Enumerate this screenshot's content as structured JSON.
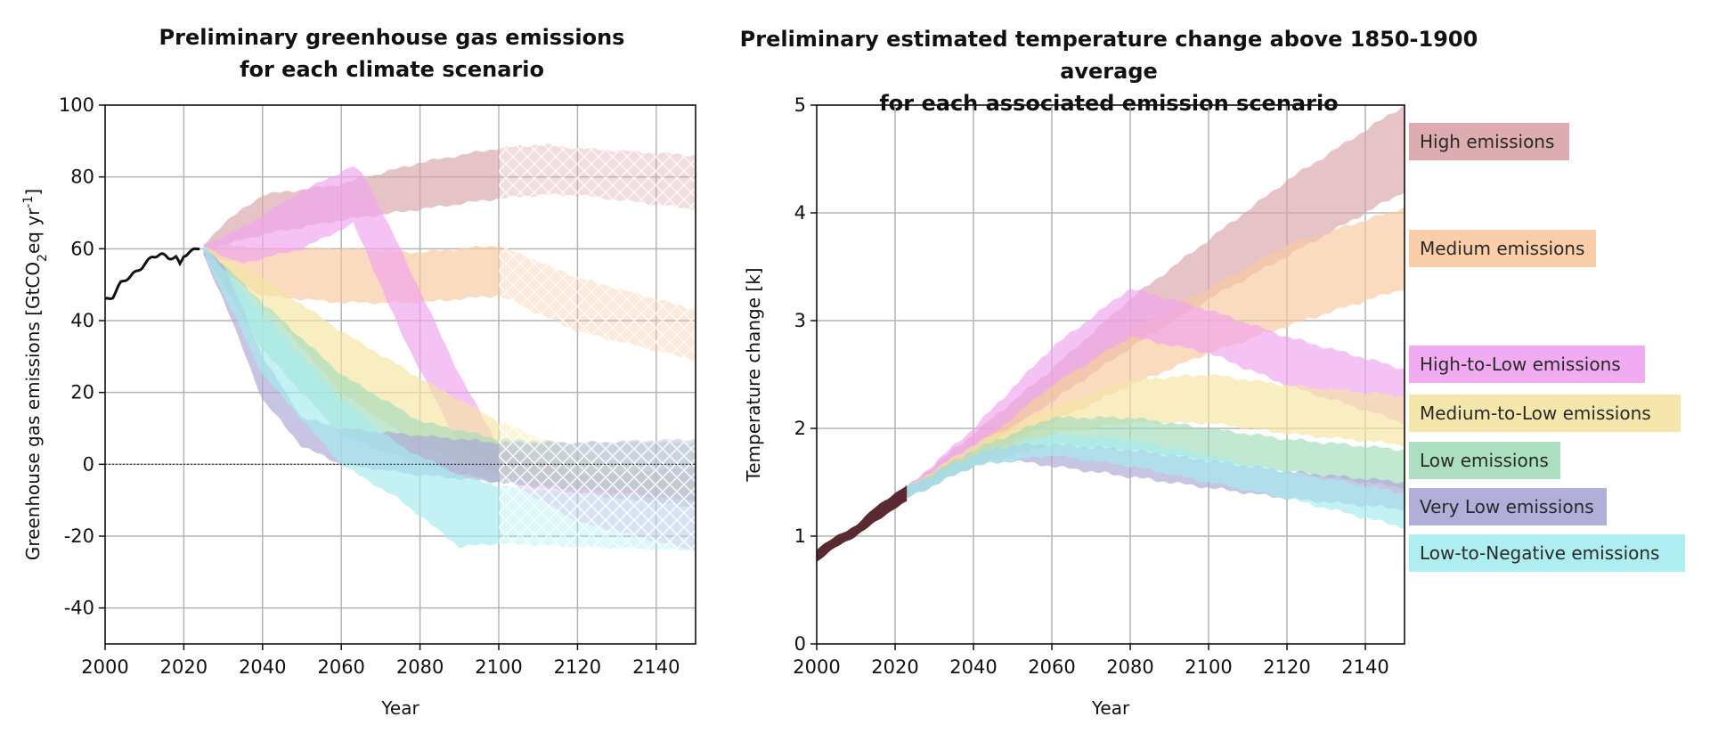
{
  "chart_data": [
    {
      "type": "area",
      "title_lines": [
        "Preliminary greenhouse gas emissions",
        "for each climate scenario"
      ],
      "xlabel": "Year",
      "ylabel": "Greenhouse gas emissions [GtCO",
      "ylabel_sub": "2",
      "ylabel_rest": "eq yr",
      "ylabel_sup": "-1",
      "ylabel_end": "]",
      "xlim": [
        2000,
        2150
      ],
      "ylim": [
        -50,
        100
      ],
      "xticks": [
        2000,
        2020,
        2040,
        2060,
        2080,
        2100,
        2120,
        2140
      ],
      "yticks": [
        -40,
        -20,
        0,
        20,
        40,
        60,
        80,
        100
      ],
      "grid": true,
      "zero_line": true,
      "hatched_region_start": 2100,
      "historical": {
        "x": [
          2000,
          2002,
          2004,
          2006,
          2008,
          2010,
          2012,
          2014,
          2016,
          2018,
          2019,
          2020,
          2022,
          2024
        ],
        "y": [
          46,
          46.5,
          50,
          52,
          54,
          56,
          57.5,
          58,
          57.5,
          58,
          56,
          58.5,
          59,
          60
        ]
      },
      "series": [
        {
          "name": "High emissions",
          "color": "#d9a4a9",
          "x": [
            2025,
            2030,
            2040,
            2060,
            2080,
            2100,
            2110,
            2120,
            2150
          ],
          "lower": [
            59,
            61,
            64,
            68,
            71,
            74,
            75,
            75,
            71
          ],
          "upper": [
            61,
            67,
            75,
            78,
            84,
            88,
            89,
            88,
            86
          ]
        },
        {
          "name": "Medium emissions",
          "color": "#f9c9a0",
          "x": [
            2025,
            2030,
            2040,
            2060,
            2080,
            2100,
            2120,
            2150
          ],
          "lower": [
            58,
            53,
            47,
            45,
            45,
            47,
            37,
            29
          ],
          "upper": [
            60,
            61,
            60,
            60,
            59,
            61,
            52,
            43
          ]
        },
        {
          "name": "High-to-Low emissions",
          "color": "#f0a3ef",
          "x": [
            2025,
            2035,
            2050,
            2063,
            2066,
            2075,
            2090,
            2100,
            2120,
            2150
          ],
          "lower": [
            58,
            56,
            60,
            67,
            60,
            37,
            5,
            -3,
            -16,
            -24
          ],
          "upper": [
            61,
            66,
            76,
            83,
            80,
            60,
            25,
            5,
            -3,
            -1
          ]
        },
        {
          "name": "Medium-to-Low emissions",
          "color": "#f5e5a3",
          "x": [
            2025,
            2040,
            2060,
            2080,
            2100,
            2120,
            2150
          ],
          "lower": [
            59,
            45,
            20,
            5,
            -3,
            -6,
            -8
          ],
          "upper": [
            61,
            52,
            37,
            24,
            12,
            3,
            -5
          ]
        },
        {
          "name": "Low emissions",
          "color": "#a4dcb9",
          "x": [
            2025,
            2040,
            2060,
            2080,
            2100,
            2120,
            2150
          ],
          "lower": [
            59,
            32,
            8,
            0,
            -5,
            -7,
            -10
          ],
          "upper": [
            61,
            45,
            25,
            12,
            7,
            6,
            6
          ]
        },
        {
          "name": "Very Low emissions",
          "color": "#aaa6d6",
          "x": [
            2025,
            2030,
            2040,
            2050,
            2060,
            2080,
            2100,
            2120,
            2150
          ],
          "lower": [
            58,
            46,
            18,
            5,
            0,
            -3,
            -5,
            -8,
            -12
          ],
          "upper": [
            60,
            56,
            30,
            13,
            10,
            8,
            6,
            6,
            7
          ]
        },
        {
          "name": "Low-to-Negative emissions",
          "color": "#a6ecef",
          "x": [
            2025,
            2040,
            2060,
            2075,
            2090,
            2100,
            2120,
            2150
          ],
          "lower": [
            59,
            25,
            0,
            -10,
            -23,
            -22,
            -23,
            -24
          ],
          "upper": [
            61,
            42,
            18,
            5,
            -3,
            -6,
            -8,
            -10
          ]
        }
      ]
    },
    {
      "type": "area",
      "title_lines": [
        "Preliminary estimated temperature change above 1850-1900 average",
        "for each associated emission scenario"
      ],
      "xlabel": "Year",
      "ylabel": "Temperature change [k]",
      "xlim": [
        2000,
        2150
      ],
      "ylim": [
        0,
        5
      ],
      "xticks": [
        2000,
        2020,
        2040,
        2060,
        2080,
        2100,
        2120,
        2140
      ],
      "yticks": [
        0,
        1,
        2,
        3,
        4,
        5
      ],
      "grid": true,
      "legend_position": "right",
      "historical": {
        "x": [
          2000,
          2005,
          2010,
          2015,
          2020,
          2023
        ],
        "lower": [
          0.76,
          0.9,
          1.0,
          1.13,
          1.26,
          1.32
        ],
        "upper": [
          0.88,
          1.0,
          1.1,
          1.27,
          1.4,
          1.47
        ]
      },
      "series": [
        {
          "name": "High emissions",
          "color": "#d9a4a9",
          "x": [
            2023,
            2040,
            2060,
            2080,
            2100,
            2120,
            2150
          ],
          "lower": [
            1.35,
            1.75,
            2.25,
            2.75,
            3.2,
            3.6,
            4.2
          ],
          "upper": [
            1.45,
            1.95,
            2.55,
            3.2,
            3.75,
            4.3,
            5.0
          ]
        },
        {
          "name": "Medium emissions",
          "color": "#f9c9a0",
          "x": [
            2023,
            2040,
            2060,
            2080,
            2100,
            2120,
            2150
          ],
          "lower": [
            1.35,
            1.7,
            2.05,
            2.4,
            2.7,
            2.95,
            3.3
          ],
          "upper": [
            1.45,
            1.85,
            2.4,
            2.9,
            3.3,
            3.7,
            4.05
          ]
        },
        {
          "name": "High-to-Low emissions",
          "color": "#f0a3ef",
          "x": [
            2023,
            2040,
            2060,
            2080,
            2100,
            2120,
            2150
          ],
          "lower": [
            1.35,
            1.8,
            2.4,
            2.85,
            2.7,
            2.4,
            2.05
          ],
          "upper": [
            1.45,
            2.0,
            2.75,
            3.3,
            3.1,
            2.85,
            2.55
          ]
        },
        {
          "name": "Medium-to-Low emissions",
          "color": "#f5e5a3",
          "x": [
            2023,
            2040,
            2060,
            2080,
            2100,
            2120,
            2150
          ],
          "lower": [
            1.35,
            1.7,
            1.95,
            2.05,
            2.05,
            1.95,
            1.85
          ],
          "upper": [
            1.45,
            1.85,
            2.2,
            2.45,
            2.5,
            2.4,
            2.3
          ]
        },
        {
          "name": "Low emissions",
          "color": "#a4dcb9",
          "x": [
            2023,
            2040,
            2060,
            2080,
            2100,
            2120,
            2150
          ],
          "lower": [
            1.35,
            1.65,
            1.85,
            1.8,
            1.7,
            1.6,
            1.45
          ],
          "upper": [
            1.45,
            1.8,
            2.1,
            2.1,
            2.0,
            1.9,
            1.8
          ]
        },
        {
          "name": "Very Low emissions",
          "color": "#aaa6d6",
          "x": [
            2023,
            2040,
            2050,
            2060,
            2080,
            2100,
            2120,
            2150
          ],
          "lower": [
            1.35,
            1.65,
            1.7,
            1.65,
            1.55,
            1.45,
            1.35,
            1.25
          ],
          "upper": [
            1.45,
            1.75,
            1.85,
            1.85,
            1.8,
            1.7,
            1.6,
            1.5
          ]
        },
        {
          "name": "Low-to-Negative emissions",
          "color": "#a6ecef",
          "x": [
            2023,
            2040,
            2060,
            2080,
            2100,
            2120,
            2150
          ],
          "lower": [
            1.35,
            1.65,
            1.75,
            1.65,
            1.5,
            1.35,
            1.08
          ],
          "upper": [
            1.45,
            1.75,
            1.95,
            1.9,
            1.75,
            1.6,
            1.4
          ]
        }
      ]
    }
  ],
  "legend": {
    "items": [
      {
        "label": "High emissions",
        "color": "#d9a4a9"
      },
      {
        "label": "Medium emissions",
        "color": "#f9c9a0"
      },
      {
        "label": "High-to-Low emissions",
        "color": "#f0a3ef"
      },
      {
        "label": "Medium-to-Low emissions",
        "color": "#f5e5a3"
      },
      {
        "label": "Low emissions",
        "color": "#a4dcb9"
      },
      {
        "label": "Very Low emissions",
        "color": "#aaa6d6"
      },
      {
        "label": "Low-to-Negative emissions",
        "color": "#a6ecef"
      }
    ]
  }
}
